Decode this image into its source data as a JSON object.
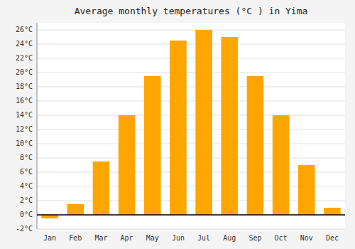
{
  "chart_data": {
    "type": "bar",
    "title": "Average monthly temperatures (°C ) in Yima",
    "categories": [
      "Jan",
      "Feb",
      "Mar",
      "Apr",
      "May",
      "Jun",
      "Jul",
      "Aug",
      "Sep",
      "Oct",
      "Nov",
      "Dec"
    ],
    "values": [
      -0.5,
      1.5,
      7.5,
      14.0,
      19.5,
      24.5,
      26.0,
      25.0,
      19.5,
      14.0,
      7.0,
      1.0
    ],
    "color": "#FFA500",
    "ylim": [
      -2,
      27
    ],
    "yticks": [
      {
        "value": -2,
        "label": "-2°C"
      },
      {
        "value": 0,
        "label": "0°C"
      },
      {
        "value": 2,
        "label": "2°C"
      },
      {
        "value": 4,
        "label": "4°C"
      },
      {
        "value": 6,
        "label": "6°C"
      },
      {
        "value": 8,
        "label": "8°C"
      },
      {
        "value": 10,
        "label": "10°C"
      },
      {
        "value": 12,
        "label": "12°C"
      },
      {
        "value": 14,
        "label": "14°C"
      },
      {
        "value": 16,
        "label": "16°C"
      },
      {
        "value": 18,
        "label": "18°C"
      },
      {
        "value": 20,
        "label": "20°C"
      },
      {
        "value": 22,
        "label": "22°C"
      },
      {
        "value": 24,
        "label": "24°C"
      },
      {
        "value": 26,
        "label": "26°C"
      }
    ],
    "grid": true
  }
}
